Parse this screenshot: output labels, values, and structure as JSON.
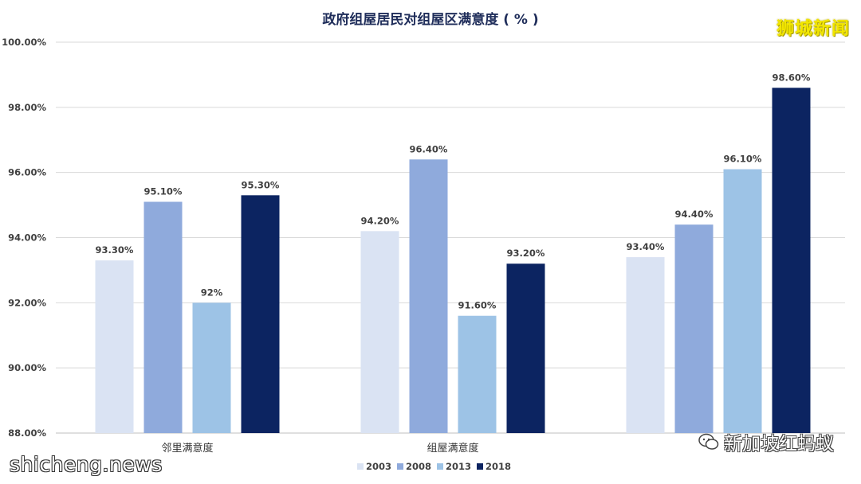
{
  "chart_data": {
    "type": "bar",
    "title": "政府组屋居民对组屋区满意度 ( % )",
    "categories": [
      "邻里满意度",
      "组屋满意度",
      ""
    ],
    "series": [
      {
        "name": "2003",
        "color": "#dae3f3",
        "values": [
          93.3,
          94.2,
          93.4
        ],
        "labels": [
          "93.30%",
          "94.20%",
          "93.40%"
        ]
      },
      {
        "name": "2008",
        "color": "#8faadc",
        "values": [
          95.1,
          96.4,
          94.4
        ],
        "labels": [
          "95.10%",
          "96.40%",
          "94.40%"
        ]
      },
      {
        "name": "2013",
        "color": "#9dc3e6",
        "values": [
          92.0,
          91.6,
          96.1
        ],
        "labels": [
          "92%",
          "91.60%",
          "96.10%"
        ]
      },
      {
        "name": "2018",
        "color": "#0c2461",
        "values": [
          95.3,
          93.2,
          98.6
        ],
        "labels": [
          "95.30%",
          "93.20%",
          "98.60%"
        ]
      }
    ],
    "ylim": [
      88,
      100
    ],
    "yticks": [
      "88.00%",
      "90.00%",
      "92.00%",
      "94.00%",
      "96.00%",
      "98.00%",
      "100.00%"
    ],
    "ytick_values": [
      88,
      90,
      92,
      94,
      96,
      98,
      100
    ],
    "grid": true,
    "legend_position": "bottom"
  },
  "watermarks": {
    "top_right": "狮城新闻",
    "bottom_left": "shicheng.news",
    "bottom_right": "新加坡红蚂蚁"
  }
}
